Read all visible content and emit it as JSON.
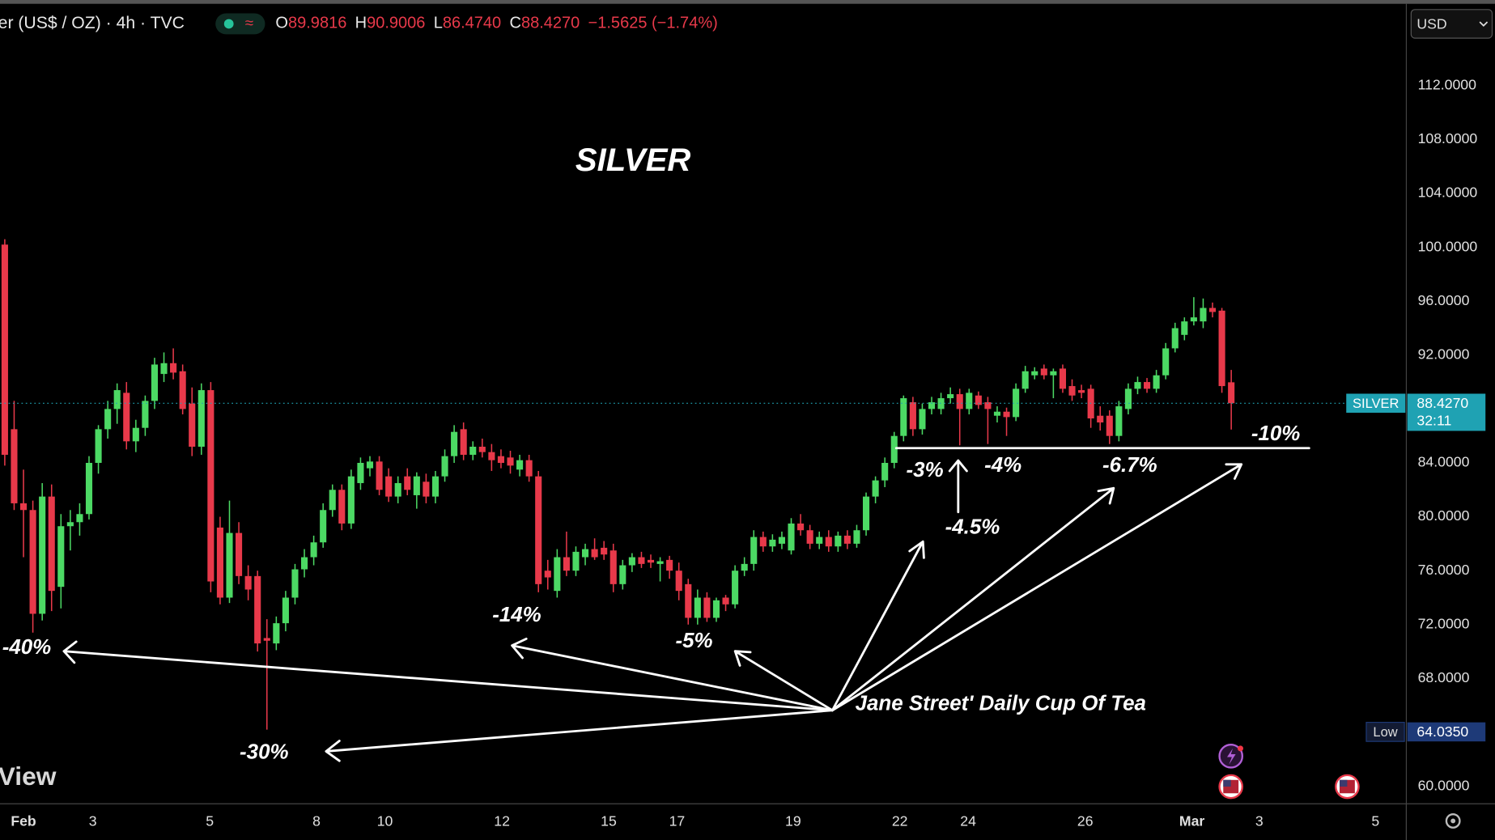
{
  "header": {
    "symbol": "er (US$ / OZ) · 4h · TVC",
    "open_label": "O",
    "open": "89.9816",
    "high_label": "H",
    "high": "90.9006",
    "low_label": "L",
    "low": "86.4740",
    "close_label": "C",
    "close": "88.4270",
    "change": "−1.5625 (−1.74%)"
  },
  "currency": "USD",
  "watermark": "View",
  "chart_data": {
    "type": "candlestick",
    "title": "SILVER",
    "up_color": "#4cd964",
    "down_color": "#e8394a",
    "ohlc": [
      [
        100.2,
        100.6,
        83.8,
        84.6
      ],
      [
        86.5,
        88.6,
        80.5,
        81.0
      ],
      [
        81.0,
        83.5,
        77.0,
        80.5
      ],
      [
        80.5,
        81.2,
        71.4,
        72.8
      ],
      [
        72.8,
        82.5,
        72.3,
        81.5
      ],
      [
        81.5,
        82.4,
        73.0,
        74.5
      ],
      [
        74.8,
        80.2,
        73.2,
        79.3
      ],
      [
        79.3,
        80.5,
        77.5,
        79.6
      ],
      [
        79.6,
        81.0,
        78.6,
        80.2
      ],
      [
        80.2,
        84.5,
        79.8,
        84.0
      ],
      [
        84.0,
        86.8,
        83.2,
        86.5
      ],
      [
        86.5,
        88.6,
        85.8,
        88.0
      ],
      [
        88.0,
        89.9,
        86.9,
        89.4
      ],
      [
        89.2,
        90.0,
        85.0,
        85.6
      ],
      [
        85.6,
        87.2,
        84.8,
        86.6
      ],
      [
        86.6,
        89.0,
        86.0,
        88.6
      ],
      [
        88.6,
        91.8,
        88.0,
        91.3
      ],
      [
        90.6,
        92.2,
        90.0,
        91.4
      ],
      [
        91.4,
        92.5,
        90.2,
        90.7
      ],
      [
        90.8,
        91.3,
        87.6,
        88.0
      ],
      [
        88.4,
        89.6,
        84.5,
        85.2
      ],
      [
        85.2,
        89.9,
        84.6,
        89.4
      ],
      [
        89.4,
        90.0,
        74.4,
        75.2
      ],
      [
        79.2,
        80.0,
        73.5,
        74.0
      ],
      [
        74.0,
        81.2,
        73.6,
        78.8
      ],
      [
        78.8,
        79.6,
        75.0,
        75.6
      ],
      [
        75.6,
        76.4,
        73.8,
        74.6
      ],
      [
        75.6,
        76.0,
        70.0,
        70.6
      ],
      [
        71.0,
        72.4,
        64.2,
        70.8
      ],
      [
        70.6,
        72.6,
        70.1,
        72.1
      ],
      [
        72.1,
        74.5,
        71.5,
        74.0
      ],
      [
        74.0,
        76.5,
        73.5,
        76.1
      ],
      [
        76.1,
        77.6,
        75.5,
        77.0
      ],
      [
        77.0,
        78.6,
        76.4,
        78.1
      ],
      [
        78.1,
        81.0,
        77.7,
        80.5
      ],
      [
        80.5,
        82.4,
        80.0,
        82.0
      ],
      [
        82.0,
        82.4,
        79.0,
        79.5
      ],
      [
        79.5,
        83.5,
        79.1,
        83.0
      ],
      [
        82.5,
        84.4,
        82.0,
        84.0
      ],
      [
        83.6,
        84.5,
        83.0,
        84.1
      ],
      [
        84.1,
        84.5,
        81.6,
        82.0
      ],
      [
        83.0,
        83.6,
        81.1,
        81.5
      ],
      [
        81.5,
        83.0,
        81.0,
        82.5
      ],
      [
        83.0,
        83.6,
        81.6,
        82.0
      ],
      [
        81.6,
        83.3,
        80.6,
        83.0
      ],
      [
        82.6,
        83.2,
        81.0,
        81.5
      ],
      [
        81.5,
        83.4,
        81.0,
        83.0
      ],
      [
        83.0,
        85.0,
        82.6,
        84.5
      ],
      [
        84.5,
        86.8,
        84.0,
        86.3
      ],
      [
        86.5,
        87.0,
        84.2,
        84.6
      ],
      [
        84.6,
        85.6,
        84.2,
        85.2
      ],
      [
        85.2,
        85.8,
        84.4,
        84.8
      ],
      [
        84.8,
        85.4,
        83.4,
        84.2
      ],
      [
        84.5,
        85.0,
        83.6,
        84.0
      ],
      [
        84.4,
        84.9,
        83.2,
        83.8
      ],
      [
        83.5,
        84.6,
        83.0,
        84.2
      ],
      [
        84.2,
        84.6,
        82.6,
        83.0
      ],
      [
        83.0,
        83.4,
        74.4,
        75.0
      ],
      [
        76.0,
        76.8,
        74.6,
        75.5
      ],
      [
        74.5,
        77.6,
        74.0,
        77.0
      ],
      [
        77.0,
        78.9,
        75.6,
        76.0
      ],
      [
        76.0,
        77.8,
        75.6,
        77.4
      ],
      [
        77.0,
        78.0,
        76.4,
        77.6
      ],
      [
        77.6,
        78.4,
        76.8,
        77.0
      ],
      [
        77.7,
        78.2,
        76.8,
        77.2
      ],
      [
        77.5,
        78.0,
        74.4,
        75.0
      ],
      [
        75.0,
        76.8,
        74.6,
        76.4
      ],
      [
        76.4,
        77.3,
        75.9,
        77.0
      ],
      [
        77.0,
        77.4,
        76.2,
        76.5
      ],
      [
        76.8,
        77.2,
        76.2,
        76.6
      ],
      [
        76.5,
        77.0,
        75.2,
        76.7
      ],
      [
        76.8,
        77.1,
        75.4,
        76.0
      ],
      [
        76.0,
        76.6,
        73.8,
        74.5
      ],
      [
        75.0,
        75.4,
        72.0,
        72.5
      ],
      [
        72.5,
        74.6,
        72.0,
        74.0
      ],
      [
        74.0,
        74.4,
        72.2,
        72.5
      ],
      [
        72.5,
        74.0,
        72.2,
        73.8
      ],
      [
        74.0,
        74.2,
        73.0,
        73.5
      ],
      [
        73.5,
        76.4,
        73.2,
        76.0
      ],
      [
        76.0,
        77.0,
        75.6,
        76.5
      ],
      [
        76.5,
        79.0,
        76.0,
        78.5
      ],
      [
        78.5,
        78.9,
        77.4,
        77.8
      ],
      [
        77.8,
        78.7,
        77.4,
        78.3
      ],
      [
        78.0,
        78.9,
        77.6,
        78.5
      ],
      [
        77.5,
        79.9,
        77.2,
        79.5
      ],
      [
        79.5,
        80.2,
        78.6,
        79.0
      ],
      [
        79.0,
        79.4,
        77.6,
        78.0
      ],
      [
        78.0,
        78.9,
        77.6,
        78.5
      ],
      [
        78.5,
        79.0,
        77.4,
        77.8
      ],
      [
        77.8,
        78.9,
        77.4,
        78.6
      ],
      [
        78.6,
        79.0,
        77.6,
        78.0
      ],
      [
        78.0,
        79.4,
        77.7,
        79.0
      ],
      [
        79.0,
        81.8,
        78.6,
        81.5
      ],
      [
        81.5,
        83.0,
        81.0,
        82.7
      ],
      [
        82.7,
        84.4,
        82.2,
        84.0
      ],
      [
        84.0,
        86.3,
        83.6,
        86.0
      ],
      [
        86.0,
        89.0,
        85.6,
        88.8
      ],
      [
        88.5,
        88.9,
        86.0,
        86.5
      ],
      [
        86.5,
        88.4,
        86.1,
        88.0
      ],
      [
        88.0,
        88.9,
        87.6,
        88.5
      ],
      [
        88.0,
        89.2,
        87.6,
        88.8
      ],
      [
        88.8,
        89.6,
        88.4,
        89.1
      ],
      [
        89.1,
        89.5,
        85.3,
        88.0
      ],
      [
        88.0,
        89.5,
        87.6,
        89.2
      ],
      [
        89.0,
        89.3,
        88.0,
        88.3
      ],
      [
        88.5,
        88.9,
        85.4,
        88.0
      ],
      [
        87.5,
        88.2,
        87.0,
        87.8
      ],
      [
        87.8,
        88.1,
        86.0,
        87.4
      ],
      [
        87.4,
        89.9,
        87.1,
        89.5
      ],
      [
        89.5,
        91.2,
        89.2,
        90.8
      ],
      [
        90.5,
        91.1,
        90.2,
        90.8
      ],
      [
        91.0,
        91.3,
        90.2,
        90.5
      ],
      [
        90.5,
        91.0,
        88.8,
        90.8
      ],
      [
        91.0,
        91.3,
        89.2,
        89.5
      ],
      [
        89.7,
        90.2,
        88.6,
        89.0
      ],
      [
        89.4,
        89.8,
        88.8,
        89.2
      ],
      [
        89.5,
        89.8,
        86.6,
        87.3
      ],
      [
        87.5,
        88.2,
        86.4,
        87.0
      ],
      [
        87.5,
        87.9,
        85.4,
        86.0
      ],
      [
        86.0,
        88.6,
        85.6,
        88.2
      ],
      [
        88.0,
        89.9,
        87.6,
        89.5
      ],
      [
        89.5,
        90.4,
        89.1,
        90.0
      ],
      [
        90.0,
        90.3,
        89.2,
        89.5
      ],
      [
        89.5,
        90.9,
        89.2,
        90.5
      ],
      [
        90.5,
        92.9,
        90.2,
        92.5
      ],
      [
        92.5,
        94.4,
        92.2,
        94.0
      ],
      [
        93.5,
        94.8,
        93.1,
        94.5
      ],
      [
        94.5,
        96.3,
        94.2,
        94.8
      ],
      [
        94.5,
        96.2,
        94.0,
        95.5
      ],
      [
        95.5,
        95.9,
        94.8,
        95.2
      ],
      [
        95.3,
        95.5,
        89.2,
        89.7
      ],
      [
        89.9816,
        90.9006,
        86.474,
        88.427
      ]
    ],
    "xlim": [
      -0.51,
      149.7
    ],
    "xticks": [
      {
        "value": 2.0,
        "label": "Feb"
      },
      {
        "value": 9.4,
        "label": "3"
      },
      {
        "value": 21.9,
        "label": "5"
      },
      {
        "value": 33.3,
        "label": "8"
      },
      {
        "value": 40.6,
        "label": "10"
      },
      {
        "value": 53.1,
        "label": "12"
      },
      {
        "value": 64.5,
        "label": "15"
      },
      {
        "value": 71.8,
        "label": "17"
      },
      {
        "value": 84.2,
        "label": "19"
      },
      {
        "value": 95.6,
        "label": "22"
      },
      {
        "value": 102.9,
        "label": "24"
      },
      {
        "value": 115.4,
        "label": "26"
      },
      {
        "value": 126.8,
        "label": "Mar"
      },
      {
        "value": 134.0,
        "label": "3"
      },
      {
        "value": 146.4,
        "label": "5"
      }
    ],
    "ylim": [
      58.7,
      118.0
    ],
    "yticks": [
      {
        "value": 60,
        "label": "60.0000"
      },
      {
        "value": 64,
        "label": "64.0000"
      },
      {
        "value": 68,
        "label": "68.0000"
      },
      {
        "value": 72,
        "label": "72.0000"
      },
      {
        "value": 76,
        "label": "76.0000"
      },
      {
        "value": 80,
        "label": "80.0000"
      },
      {
        "value": 84,
        "label": "84.0000"
      },
      {
        "value": 88,
        "label": "88.0000"
      },
      {
        "value": 92,
        "label": "92.0000"
      },
      {
        "value": 96,
        "label": "96.0000"
      },
      {
        "value": 100,
        "label": "100.0000"
      },
      {
        "value": 104,
        "label": "104.0000"
      },
      {
        "value": 108,
        "label": "108.0000"
      },
      {
        "value": 112,
        "label": "112.0000"
      }
    ],
    "grid": false,
    "last_price": {
      "name": "SILVER",
      "value": 88.427,
      "label": "88.4270",
      "countdown": "32:11",
      "color": "#1fa2b3"
    },
    "low_marker": {
      "name": "Low",
      "value": 64.035,
      "label": "64.0350",
      "color": "#1e3a78"
    },
    "annotations": [
      "-40%",
      "-30%",
      "-14%",
      "-5%",
      "-3%",
      "-4.5%",
      "-4%",
      "-6.7%",
      "-10%",
      "Jane Street' Daily Cup Of Tea"
    ]
  }
}
